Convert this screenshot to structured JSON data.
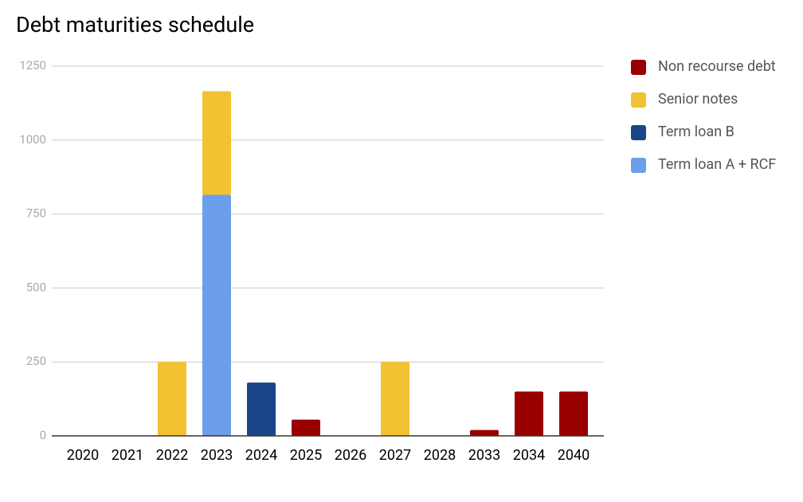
{
  "chart_data": {
    "type": "bar",
    "stacked": true,
    "title": "Debt maturities schedule",
    "categories": [
      "2020",
      "2021",
      "2022",
      "2023",
      "2024",
      "2025",
      "2026",
      "2027",
      "2028",
      "2033",
      "2034",
      "2040"
    ],
    "series": [
      {
        "name": "Non recourse debt",
        "color": "#990000",
        "values": [
          null,
          null,
          null,
          null,
          null,
          55,
          null,
          null,
          null,
          20,
          150,
          150
        ]
      },
      {
        "name": "Senior notes",
        "color": "#f1c232",
        "values": [
          null,
          null,
          250,
          350,
          null,
          null,
          null,
          250,
          null,
          null,
          null,
          null
        ]
      },
      {
        "name": "Term loan B",
        "color": "#1c4587",
        "values": [
          null,
          null,
          null,
          null,
          180,
          null,
          null,
          null,
          null,
          null,
          null,
          null
        ]
      },
      {
        "name": "Term loan A + RCF",
        "color": "#6d9eeb",
        "values": [
          null,
          null,
          null,
          815,
          null,
          null,
          null,
          null,
          null,
          null,
          null,
          null
        ]
      }
    ],
    "ylim": [
      0,
      1250
    ],
    "yticks": [
      0,
      250,
      500,
      750,
      1000,
      1250
    ],
    "grid": true,
    "legend": "right"
  }
}
